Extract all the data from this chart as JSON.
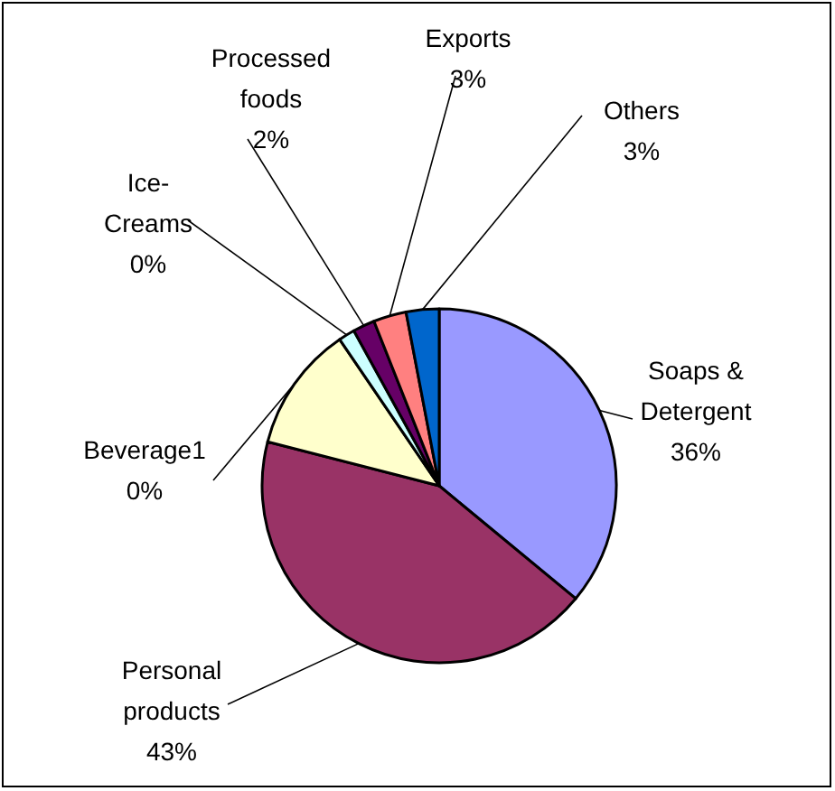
{
  "chart_data": {
    "type": "pie",
    "categories": [
      "Soaps & Detergent",
      "Personal products",
      "Beverage1",
      "Ice-Creams",
      "Processed foods",
      "Exports",
      "Others"
    ],
    "values": [
      36,
      43,
      11.5,
      1.5,
      2,
      3,
      3
    ],
    "value_labels": [
      "36%",
      "43%",
      null,
      null,
      "2%",
      "3%",
      "3%"
    ],
    "annotations": [
      "0%",
      "0%"
    ],
    "colors": [
      "#9999ff",
      "#993366",
      "#ffffcc",
      "#ccffff",
      "#660066",
      "#ff8080",
      "#0066cc"
    ],
    "legend": false
  }
}
